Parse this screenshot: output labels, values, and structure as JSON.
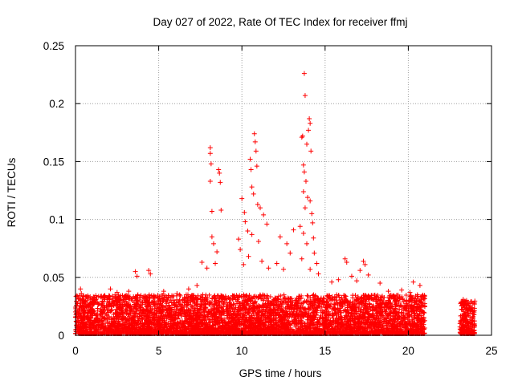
{
  "chart_data": {
    "type": "scatter",
    "title": "Day 027 of 2022, Rate Of TEC Index for receiver ffmj",
    "xlabel": "GPS time / hours",
    "ylabel": "ROTI / TECUs",
    "xlim": [
      0,
      25
    ],
    "ylim": [
      0,
      0.25
    ],
    "x_ticks": [
      "0",
      "5",
      "10",
      "15",
      "20",
      "25"
    ],
    "y_ticks": [
      "0",
      "0.05",
      "0.1",
      "0.15",
      "0.2",
      "0.25"
    ],
    "grid": true,
    "marker": "plus",
    "color": "#ff0000",
    "series": [
      {
        "values": [
          {
            "x": 8.1,
            "y": 0.162
          },
          {
            "x": 8.1,
            "y": 0.157
          },
          {
            "x": 8.15,
            "y": 0.148
          },
          {
            "x": 8.1,
            "y": 0.133
          },
          {
            "x": 8.2,
            "y": 0.107
          },
          {
            "x": 8.6,
            "y": 0.143
          },
          {
            "x": 8.65,
            "y": 0.14
          },
          {
            "x": 8.7,
            "y": 0.132
          },
          {
            "x": 8.75,
            "y": 0.108
          },
          {
            "x": 8.2,
            "y": 0.085
          },
          {
            "x": 8.3,
            "y": 0.079
          },
          {
            "x": 8.5,
            "y": 0.072
          },
          {
            "x": 7.6,
            "y": 0.063
          },
          {
            "x": 7.9,
            "y": 0.058
          },
          {
            "x": 8.4,
            "y": 0.062
          },
          {
            "x": 10.0,
            "y": 0.118
          },
          {
            "x": 10.15,
            "y": 0.106
          },
          {
            "x": 10.2,
            "y": 0.098
          },
          {
            "x": 10.5,
            "y": 0.152
          },
          {
            "x": 10.55,
            "y": 0.143
          },
          {
            "x": 10.6,
            "y": 0.128
          },
          {
            "x": 10.75,
            "y": 0.174
          },
          {
            "x": 10.8,
            "y": 0.167
          },
          {
            "x": 10.85,
            "y": 0.159
          },
          {
            "x": 10.9,
            "y": 0.146
          },
          {
            "x": 10.7,
            "y": 0.122
          },
          {
            "x": 10.95,
            "y": 0.113
          },
          {
            "x": 11.1,
            "y": 0.11
          },
          {
            "x": 11.3,
            "y": 0.104
          },
          {
            "x": 11.5,
            "y": 0.096
          },
          {
            "x": 10.35,
            "y": 0.09
          },
          {
            "x": 10.6,
            "y": 0.087
          },
          {
            "x": 11.0,
            "y": 0.081
          },
          {
            "x": 9.8,
            "y": 0.083
          },
          {
            "x": 9.9,
            "y": 0.074
          },
          {
            "x": 10.4,
            "y": 0.068
          },
          {
            "x": 10.1,
            "y": 0.061
          },
          {
            "x": 11.2,
            "y": 0.064
          },
          {
            "x": 11.6,
            "y": 0.058
          },
          {
            "x": 12.3,
            "y": 0.085
          },
          {
            "x": 12.7,
            "y": 0.079
          },
          {
            "x": 12.9,
            "y": 0.071
          },
          {
            "x": 13.1,
            "y": 0.091
          },
          {
            "x": 12.1,
            "y": 0.062
          },
          {
            "x": 12.5,
            "y": 0.057
          },
          {
            "x": 13.75,
            "y": 0.226
          },
          {
            "x": 13.8,
            "y": 0.207
          },
          {
            "x": 14.05,
            "y": 0.187
          },
          {
            "x": 14.1,
            "y": 0.183
          },
          {
            "x": 14.0,
            "y": 0.177
          },
          {
            "x": 13.65,
            "y": 0.172
          },
          {
            "x": 13.6,
            "y": 0.171
          },
          {
            "x": 13.9,
            "y": 0.165
          },
          {
            "x": 14.15,
            "y": 0.159
          },
          {
            "x": 13.7,
            "y": 0.147
          },
          {
            "x": 13.75,
            "y": 0.141
          },
          {
            "x": 13.85,
            "y": 0.133
          },
          {
            "x": 13.7,
            "y": 0.124
          },
          {
            "x": 13.95,
            "y": 0.119
          },
          {
            "x": 14.1,
            "y": 0.116
          },
          {
            "x": 13.8,
            "y": 0.11
          },
          {
            "x": 14.2,
            "y": 0.105
          },
          {
            "x": 14.25,
            "y": 0.097
          },
          {
            "x": 13.5,
            "y": 0.094
          },
          {
            "x": 13.7,
            "y": 0.088
          },
          {
            "x": 14.3,
            "y": 0.084
          },
          {
            "x": 13.9,
            "y": 0.079
          },
          {
            "x": 14.35,
            "y": 0.071
          },
          {
            "x": 13.6,
            "y": 0.066
          },
          {
            "x": 14.5,
            "y": 0.062
          },
          {
            "x": 14.1,
            "y": 0.057
          },
          {
            "x": 14.6,
            "y": 0.053
          },
          {
            "x": 0.3,
            "y": 0.04
          },
          {
            "x": 0.35,
            "y": 0.036
          },
          {
            "x": 3.6,
            "y": 0.055
          },
          {
            "x": 3.7,
            "y": 0.051
          },
          {
            "x": 4.4,
            "y": 0.056
          },
          {
            "x": 4.5,
            "y": 0.053
          },
          {
            "x": 2.1,
            "y": 0.04
          },
          {
            "x": 2.5,
            "y": 0.037
          },
          {
            "x": 3.2,
            "y": 0.038
          },
          {
            "x": 5.3,
            "y": 0.038
          },
          {
            "x": 6.1,
            "y": 0.036
          },
          {
            "x": 6.8,
            "y": 0.04
          },
          {
            "x": 7.3,
            "y": 0.043
          },
          {
            "x": 16.2,
            "y": 0.066
          },
          {
            "x": 16.3,
            "y": 0.063
          },
          {
            "x": 16.6,
            "y": 0.051
          },
          {
            "x": 15.8,
            "y": 0.048
          },
          {
            "x": 17.3,
            "y": 0.064
          },
          {
            "x": 17.4,
            "y": 0.061
          },
          {
            "x": 17.1,
            "y": 0.056
          },
          {
            "x": 17.6,
            "y": 0.052
          },
          {
            "x": 15.4,
            "y": 0.046
          },
          {
            "x": 16.9,
            "y": 0.047
          },
          {
            "x": 18.3,
            "y": 0.045
          },
          {
            "x": 18.8,
            "y": 0.038
          },
          {
            "x": 19.6,
            "y": 0.039
          },
          {
            "x": 20.3,
            "y": 0.046
          },
          {
            "x": 20.7,
            "y": 0.043
          },
          {
            "x": 20.1,
            "y": 0.037
          },
          {
            "x": 23.3,
            "y": 0.031
          },
          {
            "x": 23.5,
            "y": 0.03
          },
          {
            "x": 23.8,
            "y": 0.029
          },
          {
            "x": 23.6,
            "y": 0.022
          },
          {
            "x": 23.4,
            "y": 0.018
          },
          {
            "x": 23.9,
            "y": 0.016
          }
        ]
      }
    ],
    "dense_band": [
      {
        "x_start": 0,
        "x_end": 21.0,
        "y_min": 0,
        "y_max": 0.035,
        "note": ""
      },
      {
        "x_start": 23.1,
        "x_end": 24.0,
        "y_min": 0,
        "y_max": 0.03,
        "note": ""
      }
    ]
  }
}
